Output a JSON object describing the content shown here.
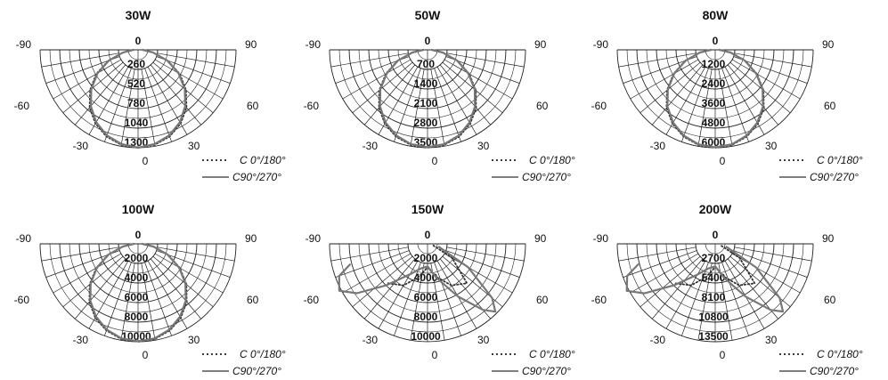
{
  "chart_data": [
    {
      "type": "polar",
      "title": "30W",
      "angle_ticks": [
        -90,
        90,
        -60,
        60,
        -30,
        30,
        0
      ],
      "zero_label": "0",
      "ring_labels": [
        "260",
        "520",
        "780",
        "1040",
        "1300"
      ],
      "rmax": 1300,
      "legend": [
        "C 0°/180°",
        "C90°/270°"
      ],
      "series": [
        {
          "name": "C 0°/180°",
          "style": "dotted",
          "points": [
            [
              0,
              1300
            ],
            [
              10,
              1280
            ],
            [
              20,
              1225
            ],
            [
              30,
              1130
            ],
            [
              40,
              1000
            ],
            [
              50,
              830
            ],
            [
              60,
              640
            ],
            [
              70,
              420
            ],
            [
              80,
              200
            ],
            [
              90,
              60
            ]
          ]
        },
        {
          "name": "C90°/270°",
          "style": "solid",
          "points": [
            [
              0,
              1300
            ],
            [
              10,
              1270
            ],
            [
              20,
              1210
            ],
            [
              30,
              1110
            ],
            [
              40,
              975
            ],
            [
              50,
              810
            ],
            [
              60,
              620
            ],
            [
              70,
              410
            ],
            [
              80,
              200
            ],
            [
              90,
              60
            ]
          ]
        }
      ]
    },
    {
      "type": "polar",
      "title": "50W",
      "angle_ticks": [
        -90,
        90,
        -60,
        60,
        -30,
        30,
        0
      ],
      "zero_label": "0",
      "ring_labels": [
        "700",
        "1400",
        "2100",
        "2800",
        "3500"
      ],
      "rmax": 3500,
      "legend": [
        "C 0°/180°",
        "C90°/270°"
      ],
      "series": [
        {
          "name": "C 0°/180°",
          "style": "dotted",
          "points": [
            [
              0,
              3500
            ],
            [
              10,
              3450
            ],
            [
              20,
              3300
            ],
            [
              30,
              3050
            ],
            [
              40,
              2700
            ],
            [
              50,
              2250
            ],
            [
              60,
              1720
            ],
            [
              70,
              1150
            ],
            [
              80,
              560
            ],
            [
              90,
              150
            ]
          ]
        },
        {
          "name": "C90°/270°",
          "style": "solid",
          "points": [
            [
              0,
              3480
            ],
            [
              10,
              3420
            ],
            [
              20,
              3260
            ],
            [
              30,
              3000
            ],
            [
              40,
              2640
            ],
            [
              50,
              2200
            ],
            [
              60,
              1680
            ],
            [
              70,
              1120
            ],
            [
              80,
              550
            ],
            [
              90,
              150
            ]
          ]
        }
      ]
    },
    {
      "type": "polar",
      "title": "80W",
      "angle_ticks": [
        -90,
        90,
        -60,
        60,
        -30,
        30,
        0
      ],
      "zero_label": "0",
      "ring_labels": [
        "1200",
        "2400",
        "3600",
        "4800",
        "6000"
      ],
      "rmax": 6000,
      "legend": [
        "C 0°/180°",
        "C90°/270°"
      ],
      "series": [
        {
          "name": "C 0°/180°",
          "style": "dotted",
          "points": [
            [
              0,
              6000
            ],
            [
              10,
              5920
            ],
            [
              20,
              5660
            ],
            [
              30,
              5230
            ],
            [
              40,
              4630
            ],
            [
              50,
              3860
            ],
            [
              60,
              2950
            ],
            [
              70,
              1960
            ],
            [
              80,
              960
            ],
            [
              90,
              250
            ]
          ]
        },
        {
          "name": "C90°/270°",
          "style": "solid",
          "points": [
            [
              0,
              5980
            ],
            [
              10,
              5880
            ],
            [
              20,
              5600
            ],
            [
              30,
              5150
            ],
            [
              40,
              4550
            ],
            [
              50,
              3790
            ],
            [
              60,
              2900
            ],
            [
              70,
              1930
            ],
            [
              80,
              950
            ],
            [
              90,
              250
            ]
          ]
        }
      ]
    },
    {
      "type": "polar",
      "title": "100W",
      "angle_ticks": [
        -90,
        90,
        -60,
        60,
        -30,
        30,
        0
      ],
      "zero_label": "0",
      "ring_labels": [
        "2000",
        "4000",
        "6000",
        "8000",
        "10000"
      ],
      "rmax": 10000,
      "legend": [
        "C 0°/180°",
        "C90°/270°"
      ],
      "series": [
        {
          "name": "C 0°/180°",
          "style": "dotted",
          "points": [
            [
              0,
              10000
            ],
            [
              10,
              9870
            ],
            [
              20,
              9430
            ],
            [
              30,
              8720
            ],
            [
              40,
              7720
            ],
            [
              50,
              6440
            ],
            [
              60,
              4920
            ],
            [
              70,
              3270
            ],
            [
              80,
              1600
            ],
            [
              90,
              420
            ]
          ]
        },
        {
          "name": "C90°/270°",
          "style": "solid",
          "points": [
            [
              0,
              9960
            ],
            [
              10,
              9800
            ],
            [
              20,
              9330
            ],
            [
              30,
              8580
            ],
            [
              40,
              7580
            ],
            [
              50,
              6310
            ],
            [
              60,
              4830
            ],
            [
              70,
              3210
            ],
            [
              80,
              1580
            ],
            [
              90,
              420
            ]
          ]
        }
      ]
    },
    {
      "type": "polar",
      "title": "150W",
      "angle_ticks": [
        -90,
        90,
        -60,
        60,
        -30,
        30,
        0
      ],
      "zero_label": "0",
      "ring_labels": [
        "2000",
        "4000",
        "6000",
        "8000",
        "10000"
      ],
      "rmax": 10000,
      "legend": [
        "C 0°/180°",
        "C90°/270°"
      ],
      "series": [
        {
          "name": "C 0°/180°",
          "style": "dotted",
          "points": [
            [
              -45,
              5700
            ],
            [
              -30,
              4900
            ],
            [
              -15,
              3500
            ],
            [
              0,
              2400
            ],
            [
              15,
              3500
            ],
            [
              30,
              4900
            ],
            [
              45,
              5700
            ],
            [
              60,
              2900
            ],
            [
              75,
              600
            ]
          ]
        },
        {
          "name": "C90°/270°",
          "style": "solid",
          "points": [
            [
              -75,
              8200
            ],
            [
              -70,
              9600
            ],
            [
              -62,
              10200
            ],
            [
              -55,
              8800
            ],
            [
              -45,
              6000
            ],
            [
              -30,
              3600
            ],
            [
              -15,
              2600
            ],
            [
              0,
              2300
            ],
            [
              15,
              3600
            ],
            [
              30,
              6200
            ],
            [
              40,
              8800
            ],
            [
              45,
              9800
            ],
            [
              50,
              8600
            ],
            [
              60,
              4800
            ],
            [
              75,
              1200
            ]
          ]
        }
      ]
    },
    {
      "type": "polar",
      "title": "200W",
      "angle_ticks": [
        -90,
        90,
        -60,
        60,
        -30,
        30,
        0
      ],
      "zero_label": "0",
      "ring_labels": [
        "2700",
        "5400",
        "8100",
        "10800",
        "13500"
      ],
      "rmax": 13500,
      "legend": [
        "C 0°/180°",
        "C90°/270°"
      ],
      "series": [
        {
          "name": "C 0°/180°",
          "style": "dotted",
          "points": [
            [
              -45,
              7700
            ],
            [
              -30,
              6600
            ],
            [
              -15,
              4700
            ],
            [
              0,
              3200
            ],
            [
              15,
              4700
            ],
            [
              30,
              6600
            ],
            [
              45,
              7700
            ],
            [
              60,
              3900
            ],
            [
              75,
              800
            ]
          ]
        },
        {
          "name": "C90°/270°",
          "style": "solid",
          "points": [
            [
              -75,
              11000
            ],
            [
              -70,
              12900
            ],
            [
              -62,
              13800
            ],
            [
              -55,
              11900
            ],
            [
              -45,
              8100
            ],
            [
              -30,
              4900
            ],
            [
              -15,
              3500
            ],
            [
              0,
              3100
            ],
            [
              15,
              4900
            ],
            [
              30,
              8400
            ],
            [
              40,
              11900
            ],
            [
              45,
              13200
            ],
            [
              50,
              11600
            ],
            [
              60,
              6500
            ],
            [
              75,
              1600
            ]
          ]
        }
      ]
    }
  ]
}
